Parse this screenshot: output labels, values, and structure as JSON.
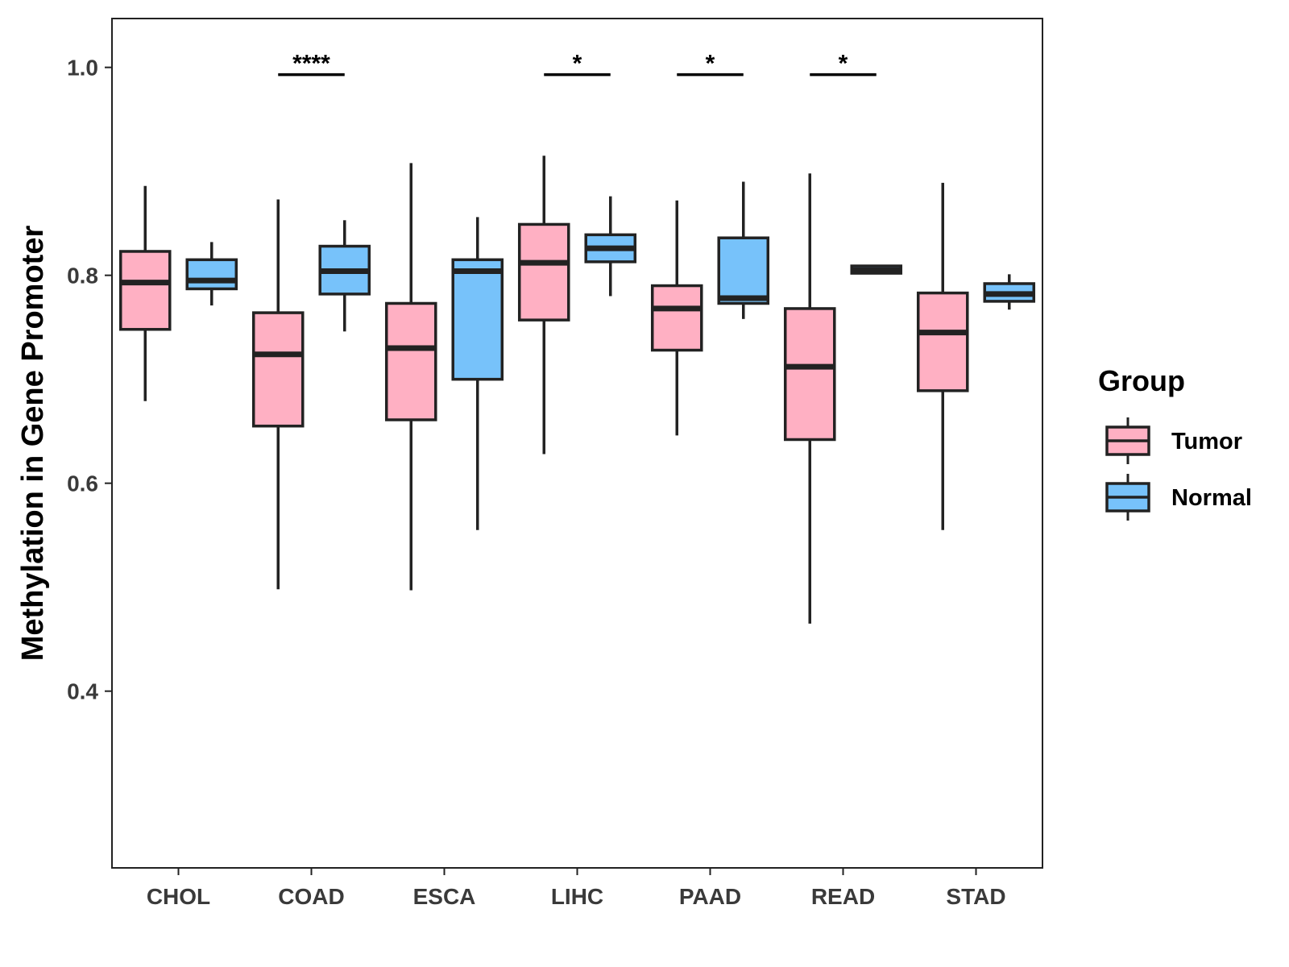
{
  "chart_data": {
    "type": "boxplot",
    "title": "",
    "xlabel": "",
    "ylabel": "Methylation in Gene Promoter",
    "ylim": [
      0.23,
      1.047
    ],
    "yticks": [
      0.4,
      0.6,
      0.8,
      1.0
    ],
    "ytick_labels": [
      "0.4",
      "0.6",
      "0.8",
      "1.0"
    ],
    "categories": [
      "CHOL",
      "COAD",
      "ESCA",
      "LIHC",
      "PAAD",
      "READ",
      "STAD"
    ],
    "legend": {
      "title": "Group",
      "position": "right",
      "entries": [
        {
          "name": "Tumor",
          "color": "#FFB0C3"
        },
        {
          "name": "Normal",
          "color": "#77C2FA"
        }
      ]
    },
    "series": [
      {
        "name": "Tumor",
        "color": "#FFB0C3",
        "boxes": [
          {
            "category": "CHOL",
            "min": 0.679,
            "q1": 0.748,
            "median": 0.793,
            "q3": 0.823,
            "max": 0.886
          },
          {
            "category": "COAD",
            "min": 0.498,
            "q1": 0.655,
            "median": 0.724,
            "q3": 0.764,
            "max": 0.873
          },
          {
            "category": "ESCA",
            "min": 0.497,
            "q1": 0.661,
            "median": 0.73,
            "q3": 0.773,
            "max": 0.908
          },
          {
            "category": "LIHC",
            "min": 0.628,
            "q1": 0.757,
            "median": 0.812,
            "q3": 0.849,
            "max": 0.915
          },
          {
            "category": "PAAD",
            "min": 0.646,
            "q1": 0.728,
            "median": 0.768,
            "q3": 0.79,
            "max": 0.872
          },
          {
            "category": "READ",
            "min": 0.465,
            "q1": 0.642,
            "median": 0.712,
            "q3": 0.768,
            "max": 0.898
          },
          {
            "category": "STAD",
            "min": 0.555,
            "q1": 0.689,
            "median": 0.745,
            "q3": 0.783,
            "max": 0.889
          }
        ]
      },
      {
        "name": "Normal",
        "color": "#77C2FA",
        "boxes": [
          {
            "category": "CHOL",
            "min": 0.771,
            "q1": 0.787,
            "median": 0.795,
            "q3": 0.815,
            "max": 0.832
          },
          {
            "category": "COAD",
            "min": 0.746,
            "q1": 0.782,
            "median": 0.804,
            "q3": 0.828,
            "max": 0.853
          },
          {
            "category": "ESCA",
            "min": 0.555,
            "q1": 0.7,
            "median": 0.804,
            "q3": 0.815,
            "max": 0.856
          },
          {
            "category": "LIHC",
            "min": 0.78,
            "q1": 0.813,
            "median": 0.826,
            "q3": 0.839,
            "max": 0.876
          },
          {
            "category": "PAAD",
            "min": 0.758,
            "q1": 0.773,
            "median": 0.778,
            "q3": 0.836,
            "max": 0.89
          },
          {
            "category": "READ",
            "min": 0.802,
            "q1": 0.802,
            "median": 0.805,
            "q3": 0.809,
            "max": 0.809
          },
          {
            "category": "STAD",
            "min": 0.767,
            "q1": 0.775,
            "median": 0.782,
            "q3": 0.792,
            "max": 0.801
          }
        ]
      }
    ],
    "annotations": [
      {
        "category": "COAD",
        "label": "****",
        "y": 0.993
      },
      {
        "category": "LIHC",
        "label": "*",
        "y": 0.993
      },
      {
        "category": "PAAD",
        "label": "*",
        "y": 0.993
      },
      {
        "category": "READ",
        "label": "*",
        "y": 0.993
      }
    ]
  }
}
